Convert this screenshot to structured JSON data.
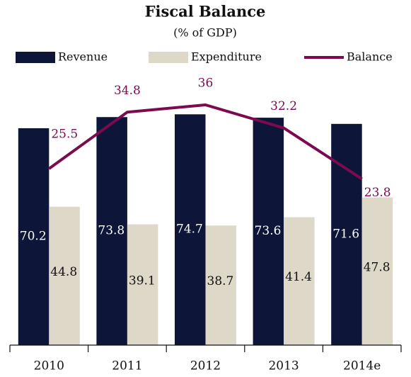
{
  "chart_data": {
    "type": "bar-line",
    "title": "Fiscal Balance",
    "subtitle": "(% of GDP)",
    "categories": [
      "2010",
      "2011",
      "2012",
      "2013",
      "2014e"
    ],
    "series": [
      {
        "name": "Revenue",
        "color": "#0d1538",
        "type": "bar",
        "values": [
          70.2,
          73.8,
          74.7,
          73.6,
          71.6
        ]
      },
      {
        "name": "Expenditure",
        "color": "#ddd8c8",
        "type": "bar",
        "values": [
          44.8,
          39.1,
          38.7,
          41.4,
          47.8
        ]
      },
      {
        "name": "Balance",
        "color": "#7b0a4f",
        "type": "line",
        "axis": "y2",
        "values": [
          25.5,
          34.8,
          36.0,
          32.2,
          23.8
        ]
      }
    ]
  }
}
